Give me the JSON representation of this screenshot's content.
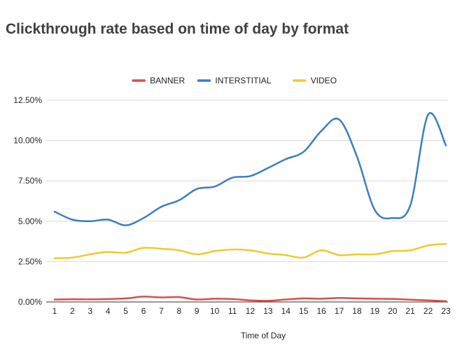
{
  "chart_data": {
    "type": "line",
    "title": "Clickthrough rate based on time of day by format",
    "xlabel": "Time of Day",
    "ylabel": "",
    "x": [
      1,
      2,
      3,
      4,
      5,
      6,
      7,
      8,
      9,
      10,
      11,
      12,
      13,
      14,
      15,
      16,
      17,
      18,
      19,
      20,
      21,
      22,
      23
    ],
    "ylim": [
      0,
      12.5
    ],
    "yticks": [
      "0.00%",
      "2.50%",
      "5.00%",
      "7.50%",
      "10.00%",
      "12.50%"
    ],
    "ytick_values": [
      0,
      2.5,
      5,
      7.5,
      10,
      12.5
    ],
    "grid": true,
    "legend_position": "top-center",
    "series": [
      {
        "name": "BANNER",
        "color": "#dd4b4b",
        "values": [
          0.15,
          0.17,
          0.16,
          0.18,
          0.22,
          0.33,
          0.28,
          0.3,
          0.15,
          0.2,
          0.18,
          0.1,
          0.07,
          0.15,
          0.22,
          0.2,
          0.25,
          0.22,
          0.2,
          0.19,
          0.14,
          0.1,
          0.05
        ]
      },
      {
        "name": "INTERSTITIAL",
        "color": "#3b7dc4",
        "values": [
          5.6,
          5.1,
          5.0,
          5.1,
          4.75,
          5.2,
          5.9,
          6.3,
          7.0,
          7.15,
          7.7,
          7.8,
          8.3,
          8.85,
          9.3,
          10.6,
          11.3,
          9.0,
          5.7,
          5.2,
          6.0,
          11.6,
          9.7
        ]
      },
      {
        "name": "VIDEO",
        "color": "#f2c929",
        "values": [
          2.7,
          2.75,
          2.95,
          3.1,
          3.05,
          3.35,
          3.3,
          3.2,
          2.95,
          3.15,
          3.25,
          3.2,
          3.0,
          2.9,
          2.75,
          3.2,
          2.9,
          2.95,
          2.95,
          3.15,
          3.2,
          3.5,
          3.6
        ]
      }
    ]
  }
}
